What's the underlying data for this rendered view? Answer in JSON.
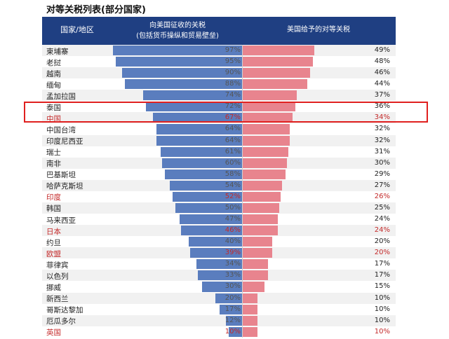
{
  "title": "对等关税列表(部分国家)",
  "header": {
    "country": "国家/地区",
    "left_line1": "向美国征收的关税",
    "left_line2": "(包括货币操纵和贸易壁垒)",
    "right": "美国给予的对等关税"
  },
  "colors": {
    "header_bg": "#1f3f82",
    "left_bar": "#5a7dbe",
    "right_bar": "#e8848e",
    "highlight_red": "#e0201f",
    "emphasis_text": "#c42a2a"
  },
  "highlighted_row": "中国",
  "chart_data": {
    "type": "bar",
    "categories": [
      "柬埔寨",
      "老挝",
      "越南",
      "缅甸",
      "孟加拉国",
      "泰国",
      "中国",
      "中国台湾",
      "印度尼西亚",
      "瑞士",
      "南非",
      "巴基斯坦",
      "哈萨克斯坦",
      "印度",
      "韩国",
      "马来西亚",
      "日本",
      "约旦",
      "欧盟",
      "菲律宾",
      "以色列",
      "挪威",
      "新西兰",
      "哥斯达黎加",
      "厄瓜多尔",
      "英国"
    ],
    "series": [
      {
        "name": "向美国征收的关税(包括货币操纵和贸易壁垒)",
        "values": [
          97,
          95,
          90,
          88,
          74,
          72,
          67,
          64,
          64,
          61,
          60,
          58,
          54,
          52,
          50,
          47,
          46,
          40,
          39,
          34,
          33,
          30,
          20,
          17,
          12,
          10
        ]
      },
      {
        "name": "美国给予的对等关税",
        "values": [
          49,
          48,
          46,
          44,
          37,
          36,
          34,
          32,
          32,
          31,
          30,
          29,
          27,
          26,
          25,
          24,
          24,
          20,
          20,
          17,
          17,
          15,
          10,
          10,
          10,
          10
        ]
      }
    ],
    "value_labels_left": [
      "97%",
      "95%",
      "90%",
      "88%",
      "74%",
      "72%",
      "67%",
      "64%",
      "64%",
      "61%",
      "60%",
      "58%",
      "54%",
      "52%",
      "50%",
      "47%",
      "46%",
      "40%",
      "39%",
      "34%",
      "33%",
      "30%",
      "20%",
      "17%",
      "12%",
      "10%"
    ],
    "value_labels_right": [
      "49%",
      "48%",
      "46%",
      "44%",
      "37%",
      "36%",
      "34%",
      "32%",
      "32%",
      "31%",
      "30%",
      "29%",
      "27%",
      "26%",
      "25%",
      "24%",
      "24%",
      "20%",
      "20%",
      "17%",
      "17%",
      "15%",
      "10%",
      "10%",
      "10%",
      "10%"
    ],
    "emphasized_categories": [
      "中国",
      "印度",
      "日本",
      "欧盟",
      "英国"
    ],
    "unit": "%",
    "xlim": [
      0,
      100
    ]
  }
}
